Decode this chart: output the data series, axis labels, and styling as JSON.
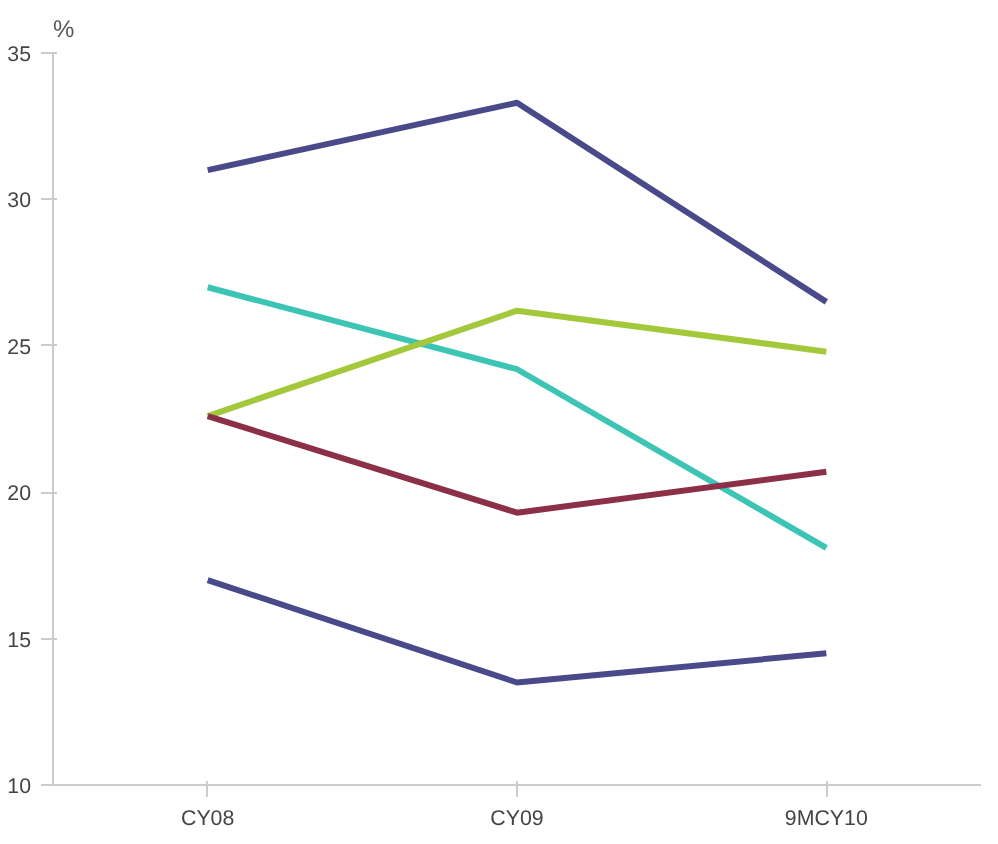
{
  "chart_data": {
    "type": "line",
    "ylabel": "%",
    "categories": [
      "CY08",
      "CY09",
      "9MCY10"
    ],
    "series": [
      {
        "color": "#4a4a8a",
        "values": [
          31.0,
          33.3,
          26.5
        ]
      },
      {
        "color": "#3cc4b4",
        "values": [
          27.0,
          24.2,
          18.1
        ]
      },
      {
        "color": "#a4c83c",
        "values": [
          22.6,
          26.2,
          24.8
        ]
      },
      {
        "color": "#8c3048",
        "values": [
          22.6,
          19.3,
          20.7
        ]
      },
      {
        "color": "#4a4a8a",
        "values": [
          17.0,
          13.5,
          14.5
        ]
      }
    ],
    "ylim": [
      10,
      35
    ],
    "yticks": [
      10,
      15,
      20,
      25,
      30,
      35
    ],
    "grid": false,
    "marker": "none",
    "line_style": "solid"
  }
}
